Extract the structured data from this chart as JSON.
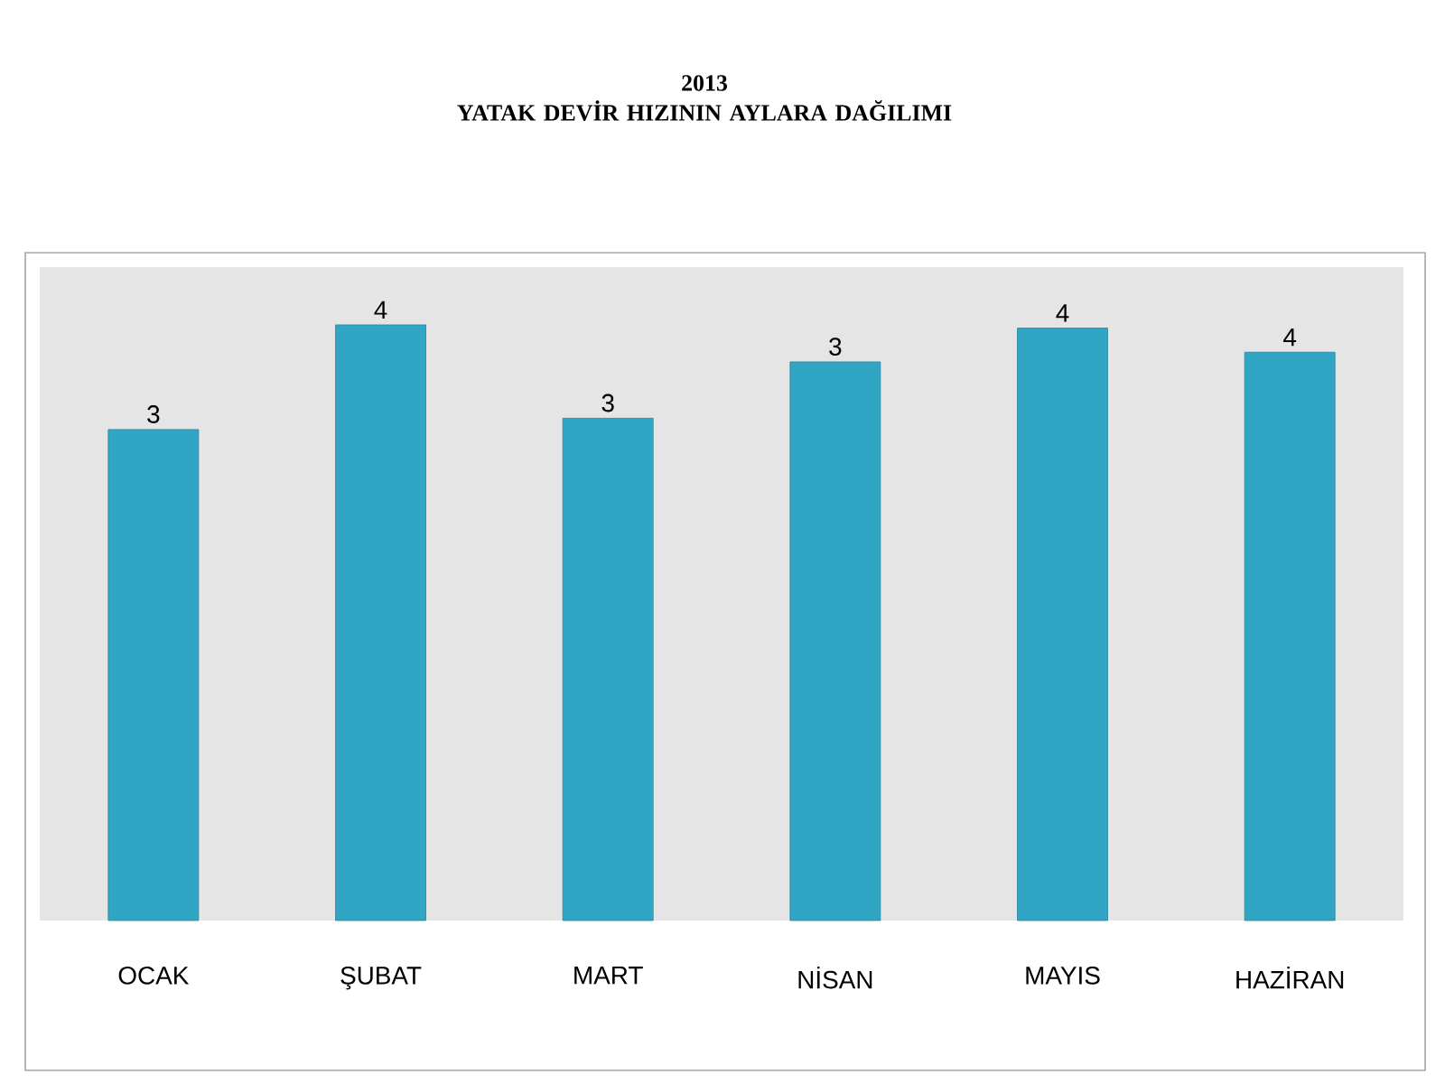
{
  "chart_data": {
    "type": "bar",
    "title": "2013",
    "subtitle": "YATAK DEVİR HIZININ AYLARA DAĞILIMI",
    "categories": [
      "OCAK",
      "ŞUBAT",
      "MART",
      "NİSAN",
      "MAYIS",
      "HAZİRAN"
    ],
    "values": [
      3.05,
      3.7,
      3.12,
      3.47,
      3.68,
      3.53
    ],
    "value_labels": [
      "3",
      "4",
      "3",
      "3",
      "4",
      "4"
    ],
    "color": "#31a6c4"
  }
}
